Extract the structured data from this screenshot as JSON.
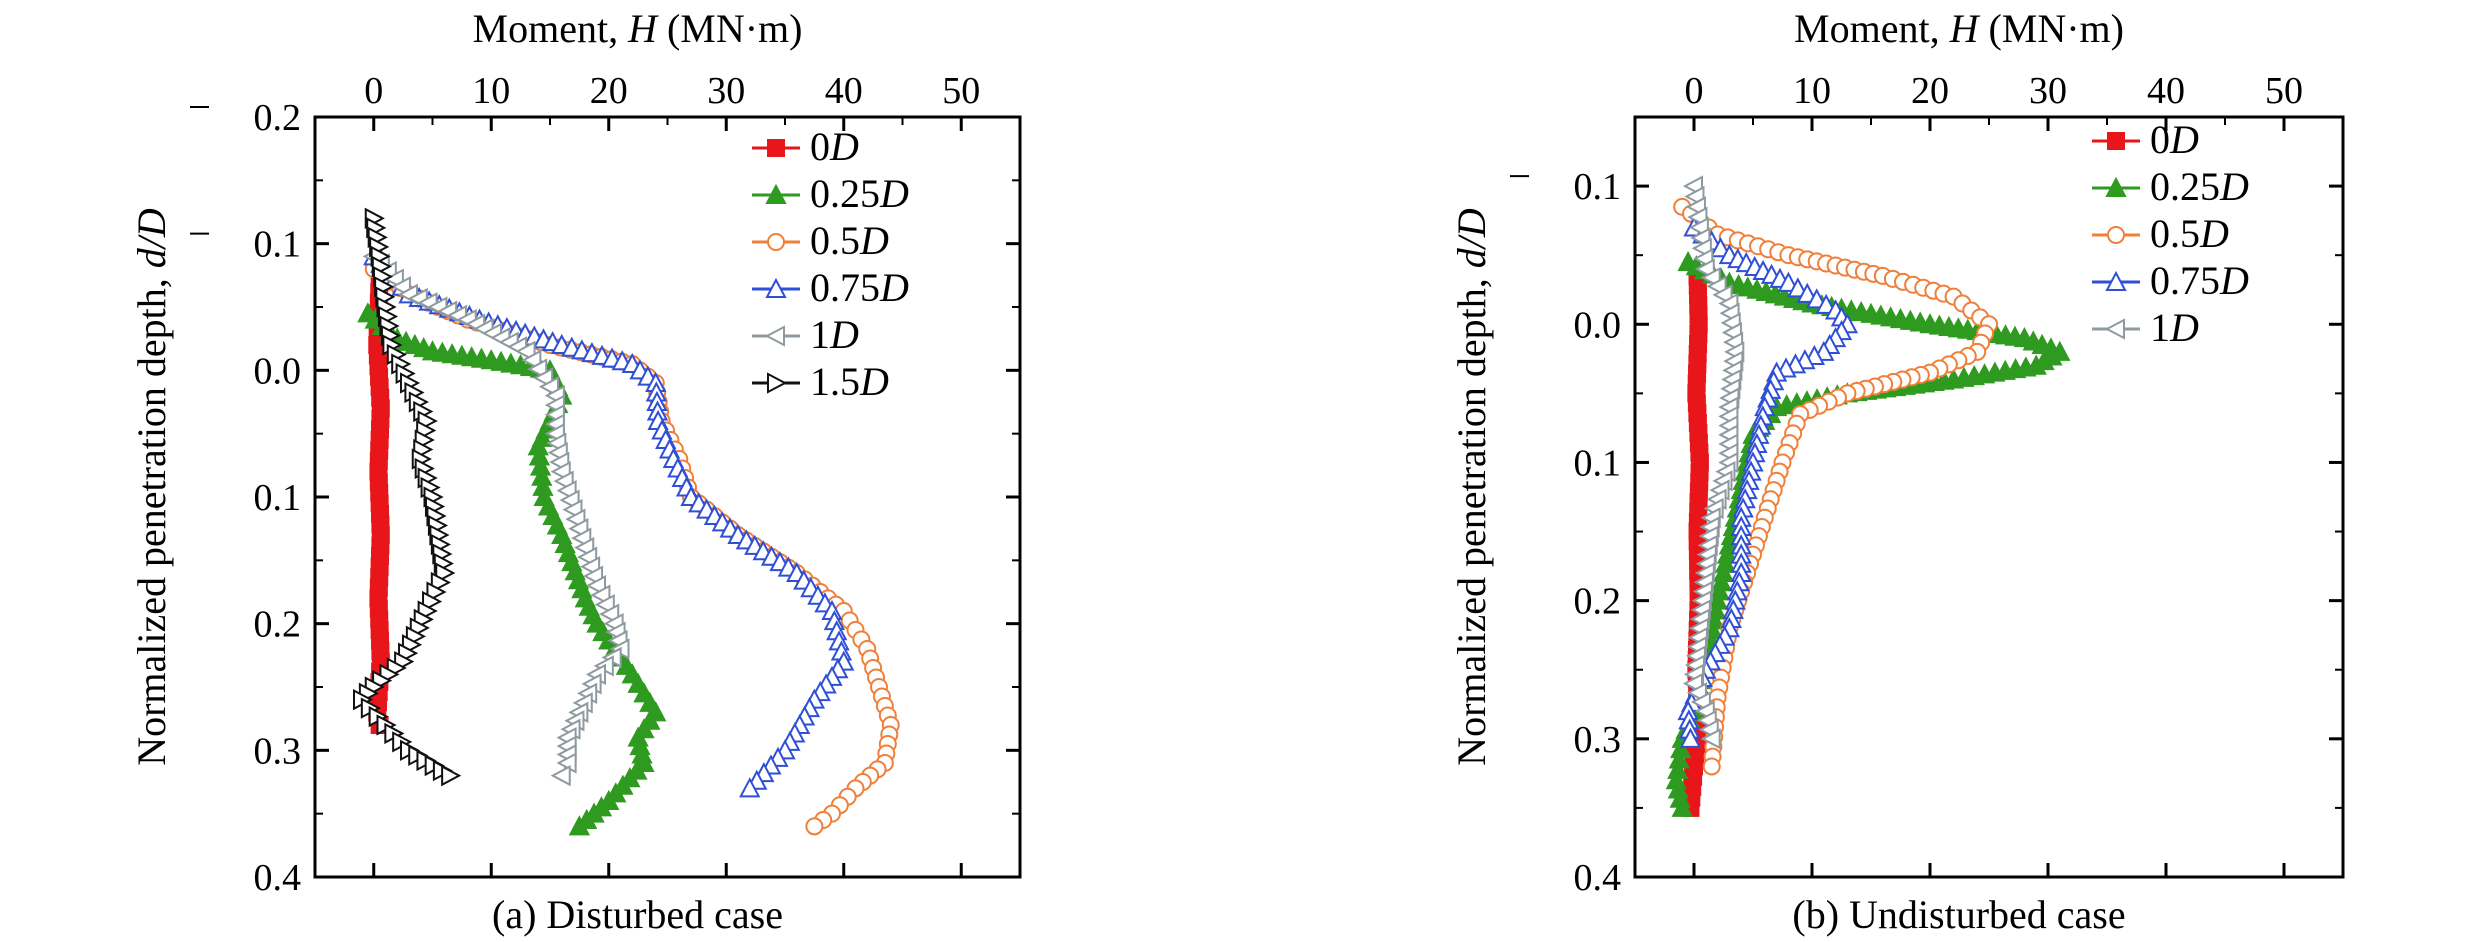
{
  "chart_data": [
    {
      "id": "a",
      "type": "line",
      "caption": "(a) Disturbed case",
      "xlabel": {
        "prefix": "Moment, ",
        "var": "H",
        "suffix": " (MN·m)"
      },
      "ylabel": {
        "prefix": "Normalized penetration depth, ",
        "var": "d/D"
      },
      "xlim": [
        -5,
        55
      ],
      "ylim": [
        -0.2,
        0.4
      ],
      "x_ticks": [
        0,
        10,
        20,
        30,
        40,
        50
      ],
      "y_ticks": [
        -0.2,
        -0.1,
        0.0,
        0.1,
        0.2,
        0.3,
        0.4
      ],
      "y_tick_labels": [
        "0.2",
        "0.1",
        "0.0",
        "0.1",
        "0.2",
        "0.3",
        "0.4"
      ],
      "grid": false,
      "legend_position": "top-right",
      "series": [
        {
          "name": "0",
          "name_italic": "D",
          "color": "#e8161a",
          "marker": "square",
          "points": [
            [
              0.5,
              -0.07
            ],
            [
              0.3,
              -0.02
            ],
            [
              0.6,
              0.03
            ],
            [
              0.4,
              0.08
            ],
            [
              0.6,
              0.13
            ],
            [
              0.4,
              0.18
            ],
            [
              0.6,
              0.23
            ],
            [
              0.3,
              0.27
            ],
            [
              0.5,
              0.28
            ]
          ]
        },
        {
          "name": "0.25",
          "name_italic": "D",
          "color": "#2e9a1f",
          "marker": "triangle",
          "points": [
            [
              -0.5,
              -0.045
            ],
            [
              2,
              -0.025
            ],
            [
              5,
              -0.015
            ],
            [
              10,
              -0.008
            ],
            [
              15,
              0.0
            ],
            [
              16,
              0.02
            ],
            [
              14,
              0.06
            ],
            [
              14.5,
              0.1
            ],
            [
              16,
              0.13
            ],
            [
              18,
              0.18
            ],
            [
              19,
              0.2
            ],
            [
              22,
              0.24
            ],
            [
              24,
              0.27
            ],
            [
              22.5,
              0.29
            ],
            [
              23,
              0.31
            ],
            [
              20,
              0.34
            ],
            [
              17.5,
              0.36
            ]
          ]
        },
        {
          "name": "0.5",
          "name_italic": "D",
          "color": "#f07f3a",
          "marker": "circle",
          "points": [
            [
              0,
              -0.08
            ],
            [
              3,
              -0.06
            ],
            [
              8,
              -0.04
            ],
            [
              15,
              -0.02
            ],
            [
              22,
              -0.005
            ],
            [
              24,
              0.01
            ],
            [
              24.5,
              0.04
            ],
            [
              26,
              0.07
            ],
            [
              27,
              0.1
            ],
            [
              31,
              0.13
            ],
            [
              36,
              0.16
            ],
            [
              40,
              0.19
            ],
            [
              42,
              0.22
            ],
            [
              43,
              0.25
            ],
            [
              44,
              0.28
            ],
            [
              43.5,
              0.31
            ],
            [
              41,
              0.33
            ],
            [
              39,
              0.35
            ],
            [
              37.5,
              0.36
            ]
          ]
        },
        {
          "name": "0.75",
          "name_italic": "D",
          "color": "#2f4fd6",
          "marker": "triangle-open",
          "points": [
            [
              0,
              -0.09
            ],
            [
              3,
              -0.06
            ],
            [
              9,
              -0.04
            ],
            [
              16,
              -0.02
            ],
            [
              22,
              -0.005
            ],
            [
              24,
              0.01
            ],
            [
              24.2,
              0.04
            ],
            [
              25.5,
              0.07
            ],
            [
              27,
              0.1
            ],
            [
              31,
              0.13
            ],
            [
              36,
              0.16
            ],
            [
              39,
              0.19
            ],
            [
              40,
              0.23
            ],
            [
              37.5,
              0.26
            ],
            [
              35,
              0.3
            ],
            [
              32,
              0.33
            ]
          ]
        },
        {
          "name": "1",
          "name_italic": "D",
          "color": "#8e9aa0",
          "marker": "triangle-left",
          "points": [
            [
              0,
              -0.09
            ],
            [
              3,
              -0.06
            ],
            [
              8,
              -0.04
            ],
            [
              13,
              -0.015
            ],
            [
              15.5,
              0.02
            ],
            [
              15.5,
              0.05
            ],
            [
              16,
              0.08
            ],
            [
              17,
              0.11
            ],
            [
              18,
              0.14
            ],
            [
              19,
              0.17
            ],
            [
              20.5,
              0.2
            ],
            [
              21,
              0.22
            ],
            [
              19,
              0.24
            ],
            [
              17.5,
              0.27
            ],
            [
              16.5,
              0.29
            ],
            [
              16.5,
              0.31
            ],
            [
              16,
              0.32
            ]
          ]
        },
        {
          "name": "1.5",
          "name_italic": "D",
          "color": "#111111",
          "marker": "triangle-right",
          "points": [
            [
              0,
              -0.12
            ],
            [
              0.5,
              -0.09
            ],
            [
              1,
              -0.05
            ],
            [
              1.5,
              -0.02
            ],
            [
              3,
              0.01
            ],
            [
              4.5,
              0.04
            ],
            [
              4,
              0.07
            ],
            [
              5,
              0.1
            ],
            [
              5.5,
              0.13
            ],
            [
              6,
              0.16
            ],
            [
              4.5,
              0.19
            ],
            [
              2.5,
              0.23
            ],
            [
              0,
              0.25
            ],
            [
              -1,
              0.26
            ],
            [
              1,
              0.28
            ],
            [
              3,
              0.3
            ],
            [
              6.5,
              0.32
            ]
          ]
        }
      ]
    },
    {
      "id": "b",
      "type": "line",
      "caption": "(b) Undisturbed case",
      "xlabel": {
        "prefix": "Moment, ",
        "var": "H",
        "suffix": " (MN·m)"
      },
      "ylabel": {
        "prefix": "Normalized penetration depth, ",
        "var": "d/D"
      },
      "xlim": [
        -5,
        55
      ],
      "ylim": [
        -0.15,
        0.4
      ],
      "x_ticks": [
        0,
        10,
        20,
        30,
        40,
        50
      ],
      "y_ticks": [
        -0.1,
        0.0,
        0.1,
        0.2,
        0.3,
        0.4
      ],
      "y_tick_labels": [
        "0.1",
        "0.0",
        "0.1",
        "0.2",
        "0.3",
        "0.4"
      ],
      "grid": false,
      "legend_position": "top-right",
      "series": [
        {
          "name": "0",
          "name_italic": "D",
          "color": "#e8161a",
          "marker": "square",
          "points": [
            [
              0.3,
              -0.035
            ],
            [
              0.4,
              0.0
            ],
            [
              0.2,
              0.05
            ],
            [
              0.5,
              0.1
            ],
            [
              0.3,
              0.15
            ],
            [
              0.4,
              0.2
            ],
            [
              0.2,
              0.25
            ],
            [
              0.4,
              0.29
            ],
            [
              0,
              0.32
            ],
            [
              -0.3,
              0.35
            ]
          ]
        },
        {
          "name": "0.25",
          "name_italic": "D",
          "color": "#2e9a1f",
          "marker": "triangle",
          "points": [
            [
              -0.5,
              -0.045
            ],
            [
              3,
              -0.03
            ],
            [
              10,
              -0.015
            ],
            [
              20,
              0.0
            ],
            [
              28,
              0.01
            ],
            [
              31,
              0.02
            ],
            [
              29,
              0.03
            ],
            [
              22,
              0.04
            ],
            [
              13,
              0.05
            ],
            [
              7,
              0.06
            ],
            [
              5,
              0.08
            ],
            [
              4,
              0.12
            ],
            [
              3,
              0.16
            ],
            [
              2,
              0.2
            ],
            [
              1,
              0.25
            ],
            [
              0,
              0.28
            ],
            [
              -1,
              0.3
            ],
            [
              -1.5,
              0.33
            ],
            [
              -1,
              0.35
            ]
          ]
        },
        {
          "name": "0.5",
          "name_italic": "D",
          "color": "#f07f3a",
          "marker": "circle",
          "points": [
            [
              -1,
              -0.085
            ],
            [
              2,
              -0.065
            ],
            [
              8,
              -0.05
            ],
            [
              16,
              -0.035
            ],
            [
              22,
              -0.02
            ],
            [
              25,
              0.0
            ],
            [
              24,
              0.02
            ],
            [
              20,
              0.035
            ],
            [
              13,
              0.05
            ],
            [
              9,
              0.065
            ],
            [
              7.5,
              0.1
            ],
            [
              6,
              0.14
            ],
            [
              4.5,
              0.18
            ],
            [
              3,
              0.22
            ],
            [
              2,
              0.27
            ],
            [
              1.5,
              0.32
            ]
          ]
        },
        {
          "name": "0.75",
          "name_italic": "D",
          "color": "#2f4fd6",
          "marker": "triangle-open",
          "points": [
            [
              0,
              -0.07
            ],
            [
              3,
              -0.05
            ],
            [
              8,
              -0.03
            ],
            [
              12,
              -0.01
            ],
            [
              13,
              0.0
            ],
            [
              11,
              0.02
            ],
            [
              7,
              0.035
            ],
            [
              6,
              0.06
            ],
            [
              5,
              0.1
            ],
            [
              4,
              0.14
            ],
            [
              4,
              0.18
            ],
            [
              3,
              0.22
            ],
            [
              1,
              0.25
            ],
            [
              -0.5,
              0.28
            ],
            [
              -0.3,
              0.3
            ]
          ]
        },
        {
          "name": "1",
          "name_italic": "D",
          "color": "#8e9aa0",
          "marker": "triangle-left",
          "points": [
            [
              0,
              -0.1
            ],
            [
              0.5,
              -0.07
            ],
            [
              1,
              -0.04
            ],
            [
              3,
              -0.015
            ],
            [
              3.5,
              0.02
            ],
            [
              3,
              0.06
            ],
            [
              3,
              0.1
            ],
            [
              1.5,
              0.14
            ],
            [
              1,
              0.18
            ],
            [
              0.5,
              0.22
            ],
            [
              0,
              0.26
            ],
            [
              1,
              0.28
            ],
            [
              1.5,
              0.3
            ]
          ]
        }
      ]
    }
  ]
}
